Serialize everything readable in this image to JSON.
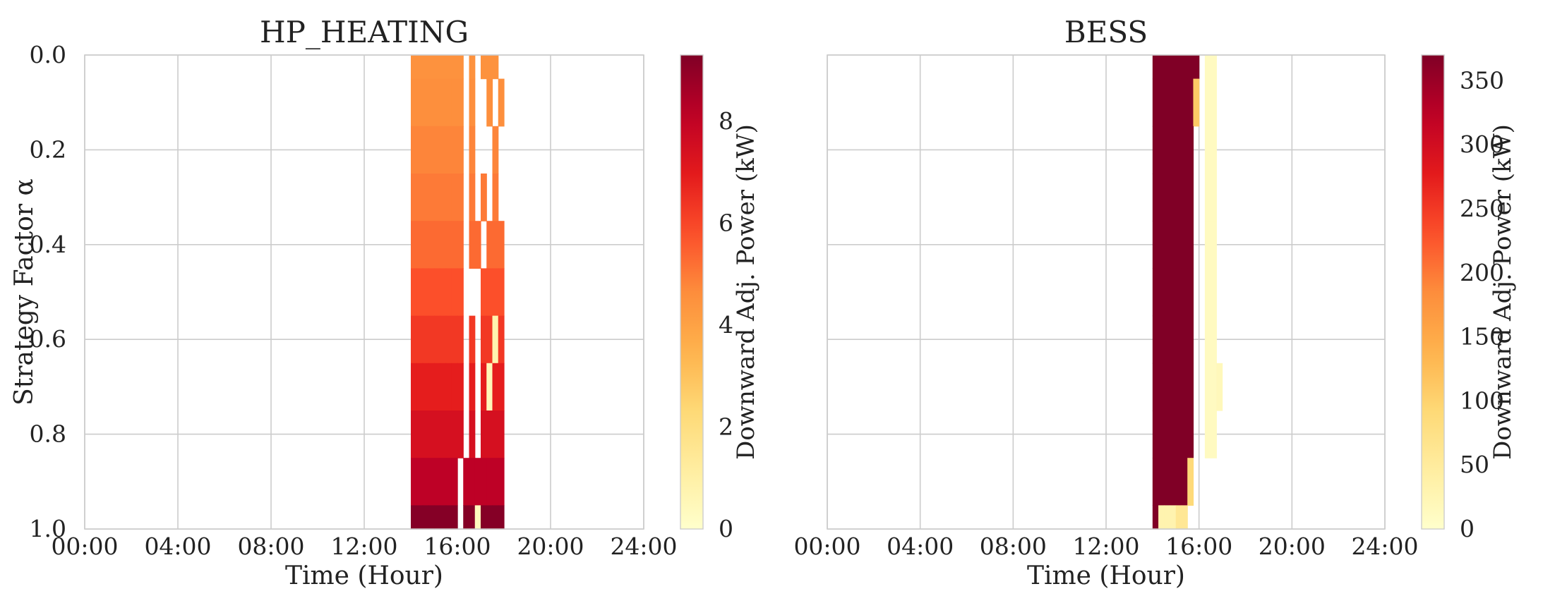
{
  "chart_data": [
    {
      "type": "heatmap",
      "title": "HP_HEATING",
      "xlabel": "Time (Hour)",
      "ylabel": "Strategy Factor α",
      "xlim": [
        0,
        24
      ],
      "ylim": [
        1.0,
        0.0
      ],
      "x_ticks": [
        "00:00",
        "04:00",
        "08:00",
        "12:00",
        "16:00",
        "20:00",
        "24:00"
      ],
      "y_ticks": [
        "0.0",
        "0.2",
        "0.4",
        "0.6",
        "0.8",
        "1.0"
      ],
      "grid": true,
      "colorbar": {
        "label": "Downward Adj. Power (kW)",
        "range": [
          0,
          9.3
        ],
        "ticks": [
          "0",
          "2",
          "4",
          "6",
          "8"
        ],
        "colormap": "YlOrRd"
      },
      "cell_width_hours": 0.25,
      "alpha_rows": [
        0.0,
        0.1,
        0.2,
        0.3,
        0.4,
        0.5,
        0.6,
        0.7,
        0.8,
        0.9,
        1.0
      ],
      "row_values_kw": [
        [
          4.5,
          4.5,
          4.5,
          4.5,
          4.5,
          4.5,
          4.5,
          4.5,
          4.5,
          0,
          4.5,
          0,
          4.5,
          4.5,
          4.5,
          0
        ],
        [
          4.6,
          4.6,
          4.6,
          4.6,
          4.6,
          4.6,
          4.6,
          4.6,
          4.6,
          0,
          4.6,
          0,
          0,
          4.6,
          0,
          4.6
        ],
        [
          4.8,
          4.8,
          4.8,
          4.8,
          4.8,
          4.8,
          4.8,
          4.8,
          4.8,
          0,
          4.8,
          0,
          0,
          0,
          4.8,
          0
        ],
        [
          5.0,
          5.0,
          5.0,
          5.0,
          5.0,
          5.0,
          5.0,
          5.0,
          5.0,
          0,
          5.0,
          0,
          5.0,
          0,
          5.0,
          0
        ],
        [
          5.3,
          5.3,
          5.3,
          5.3,
          5.3,
          5.3,
          5.3,
          5.3,
          5.3,
          0,
          5.3,
          5.3,
          0,
          5.3,
          5.3,
          5.3
        ],
        [
          5.8,
          5.8,
          5.8,
          5.8,
          5.8,
          5.8,
          5.8,
          5.8,
          5.8,
          0,
          0,
          0,
          5.8,
          5.8,
          5.8,
          5.8
        ],
        [
          6.3,
          6.3,
          6.3,
          6.3,
          6.3,
          6.3,
          6.3,
          6.3,
          6.3,
          0,
          6.3,
          0,
          6.3,
          6.3,
          0.8,
          6.3
        ],
        [
          6.9,
          6.9,
          6.9,
          6.9,
          6.9,
          6.9,
          6.9,
          6.9,
          6.9,
          0,
          6.9,
          0,
          6.9,
          0.5,
          6.9,
          6.9
        ],
        [
          7.4,
          7.4,
          7.4,
          7.4,
          7.4,
          7.4,
          7.4,
          7.4,
          7.4,
          0,
          7.4,
          0,
          7.4,
          7.4,
          7.4,
          7.4
        ],
        [
          8.1,
          8.1,
          8.1,
          8.1,
          8.1,
          8.1,
          8.1,
          8.1,
          0,
          8.1,
          8.1,
          8.1,
          8.1,
          8.1,
          8.1,
          8.1
        ],
        [
          9.2,
          9.2,
          9.2,
          9.2,
          9.2,
          9.2,
          9.2,
          9.2,
          0,
          9.2,
          9.2,
          0.4,
          9.2,
          9.2,
          9.2,
          9.2
        ]
      ]
    },
    {
      "type": "heatmap",
      "title": "BESS",
      "xlabel": "Time (Hour)",
      "ylabel": "",
      "xlim": [
        0,
        24
      ],
      "ylim": [
        1.0,
        0.0
      ],
      "x_ticks": [
        "00:00",
        "04:00",
        "08:00",
        "12:00",
        "16:00",
        "20:00",
        "24:00"
      ],
      "y_ticks": [],
      "grid": true,
      "colorbar": {
        "label": "Downward Adj. Power (kW)",
        "range": [
          0,
          370
        ],
        "ticks": [
          "0",
          "50",
          "100",
          "150",
          "200",
          "250",
          "300",
          "350"
        ],
        "colormap": "YlOrRd"
      },
      "cell_width_hours": 0.25,
      "alpha_rows": [
        0.0,
        0.1,
        0.2,
        0.3,
        0.4,
        0.5,
        0.6,
        0.7,
        0.8,
        0.9,
        1.0
      ],
      "row_values_kw": [
        [
          370,
          370,
          370,
          370,
          370,
          370,
          370,
          370,
          0,
          12,
          12,
          0,
          0
        ],
        [
          370,
          370,
          370,
          370,
          370,
          370,
          370,
          110,
          0,
          12,
          12,
          0,
          0
        ],
        [
          370,
          370,
          370,
          370,
          370,
          370,
          370,
          0,
          0,
          12,
          12,
          0,
          0
        ],
        [
          370,
          370,
          370,
          370,
          370,
          370,
          370,
          0,
          0,
          12,
          12,
          0,
          0
        ],
        [
          370,
          370,
          370,
          370,
          370,
          370,
          370,
          0,
          0,
          12,
          12,
          0,
          0
        ],
        [
          370,
          370,
          370,
          370,
          370,
          370,
          370,
          0,
          0,
          12,
          12,
          0,
          0
        ],
        [
          370,
          370,
          370,
          370,
          370,
          370,
          370,
          0,
          0,
          12,
          12,
          0,
          0
        ],
        [
          370,
          370,
          370,
          370,
          370,
          370,
          370,
          0,
          0,
          12,
          12,
          18,
          0
        ],
        [
          370,
          370,
          370,
          370,
          370,
          370,
          370,
          0,
          0,
          12,
          12,
          0,
          0
        ],
        [
          370,
          370,
          370,
          370,
          370,
          370,
          90,
          0,
          0,
          0,
          0,
          0,
          0
        ],
        [
          370,
          30,
          30,
          30,
          60,
          60,
          0,
          0,
          0,
          0,
          0,
          0,
          0
        ]
      ],
      "row_start_hour": 14.0
    }
  ]
}
